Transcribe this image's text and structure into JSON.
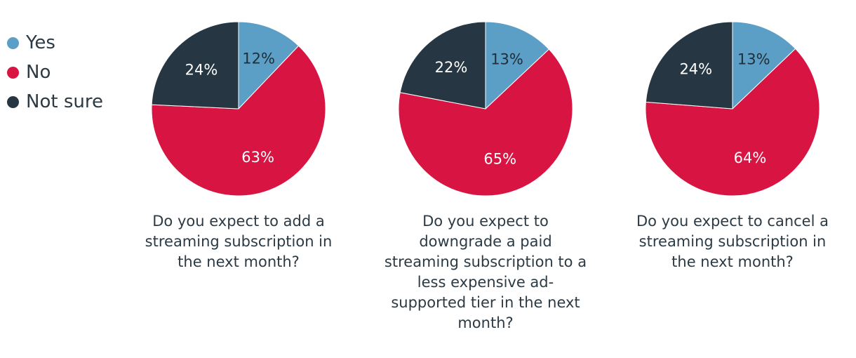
{
  "legend": [
    {
      "label": "Yes",
      "color": "#5b9ec6"
    },
    {
      "label": "No",
      "color": "#d81442"
    },
    {
      "label": "Not sure",
      "color": "#263743"
    }
  ],
  "chart_data": [
    {
      "type": "pie",
      "title": "Do you expect to add a streaming subscription in the next month?",
      "categories": [
        "Yes",
        "No",
        "Not sure"
      ],
      "values": [
        12,
        63,
        24
      ],
      "labels": [
        "12%",
        "63%",
        "24%"
      ]
    },
    {
      "type": "pie",
      "title": "Do you expect to downgrade a paid streaming subscription to a less expensive ad-supported tier in the next month?",
      "categories": [
        "Yes",
        "No",
        "Not sure"
      ],
      "values": [
        13,
        65,
        22
      ],
      "labels": [
        "13%",
        "65%",
        "22%"
      ]
    },
    {
      "type": "pie",
      "title": "Do you expect to cancel a streaming subscription in the next month?",
      "categories": [
        "Yes",
        "No",
        "Not sure"
      ],
      "values": [
        13,
        64,
        24
      ],
      "labels": [
        "13%",
        "64%",
        "24%"
      ]
    }
  ]
}
